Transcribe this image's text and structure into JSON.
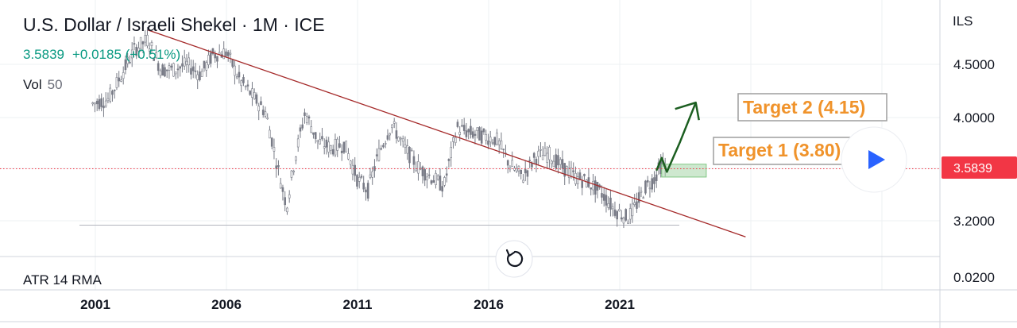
{
  "header": {
    "title": "U.S. Dollar / Israeli Shekel · 1M · ICE",
    "price": "3.5839",
    "change": "+0.0185 (+0.51%)",
    "vol_label": "Vol",
    "vol_value": "50"
  },
  "price_axis": {
    "currency": "ILS",
    "ticks": [
      "4.5000",
      "4.0000",
      "3.2000"
    ],
    "current_badge": "3.5839",
    "atr_tick": "0.0200"
  },
  "atr": {
    "label": "ATR 14 RMA"
  },
  "time_axis": {
    "ticks": [
      "2001",
      "2006",
      "2011",
      "2016",
      "2021"
    ]
  },
  "annotations": {
    "target1": "Target 1 (3.80)",
    "target2": "Target 2 (4.15)"
  },
  "colors": {
    "candle": "#787b86",
    "trendline": "#a52a2a",
    "arrow": "#1b5e20",
    "target_text": "#f0932b",
    "price_badge": "#f23645",
    "price_green": "#089981",
    "play": "#2962ff"
  },
  "icons": {
    "play": "play-icon",
    "reset": "reset-icon"
  },
  "chart_data": {
    "type": "line",
    "title": "U.S. Dollar / Israeli Shekel · 1M · ICE",
    "x": [
      2000.9,
      2001.5,
      2002.0,
      2002.5,
      2003.0,
      2003.5,
      2004.0,
      2004.5,
      2005.0,
      2005.5,
      2006.0,
      2006.5,
      2007.0,
      2007.5,
      2008.0,
      2008.3,
      2008.6,
      2009.0,
      2009.5,
      2010.0,
      2010.5,
      2011.0,
      2011.4,
      2011.8,
      2012.3,
      2012.8,
      2013.3,
      2013.8,
      2014.3,
      2014.8,
      2015.2,
      2015.8,
      2016.3,
      2016.8,
      2017.3,
      2017.8,
      2018.3,
      2018.8,
      2019.3,
      2019.8,
      2020.3,
      2020.8,
      2021.3,
      2021.6,
      2022.0,
      2022.3,
      2022.6,
      2022.8
    ],
    "series": [
      {
        "values": [
          4.13,
          4.17,
          4.4,
          4.65,
          4.75,
          4.45,
          4.45,
          4.5,
          4.4,
          4.6,
          4.62,
          4.35,
          4.2,
          4.05,
          3.55,
          3.3,
          3.65,
          4.05,
          3.8,
          3.75,
          3.78,
          3.5,
          3.42,
          3.7,
          3.95,
          3.75,
          3.6,
          3.52,
          3.45,
          3.92,
          3.88,
          3.85,
          3.82,
          3.62,
          3.52,
          3.68,
          3.7,
          3.6,
          3.52,
          3.48,
          3.4,
          3.28,
          3.22,
          3.3,
          3.45,
          3.5,
          3.62,
          3.5839
        ]
      }
    ],
    "ylim": [
      3.05,
      4.85
    ],
    "xlim": [
      1999.9,
      2025.8
    ],
    "yscale": "log",
    "trendline": {
      "x": [
        2003.0,
        2025.8
      ],
      "y": [
        4.85,
        3.09
      ]
    },
    "support_level": 3.17,
    "target_zone": {
      "x": [
        2022.6,
        2024.3
      ],
      "y": [
        3.52,
        3.62
      ]
    },
    "projection_path": {
      "x": [
        2022.4,
        2022.6,
        2022.8,
        2023.3,
        2023.9,
        2024.1
      ],
      "y": [
        3.57,
        3.67,
        3.56,
        3.8,
        4.14,
        4.05
      ]
    },
    "atr_value": 0.02,
    "grid": true,
    "legend": "top-left"
  }
}
